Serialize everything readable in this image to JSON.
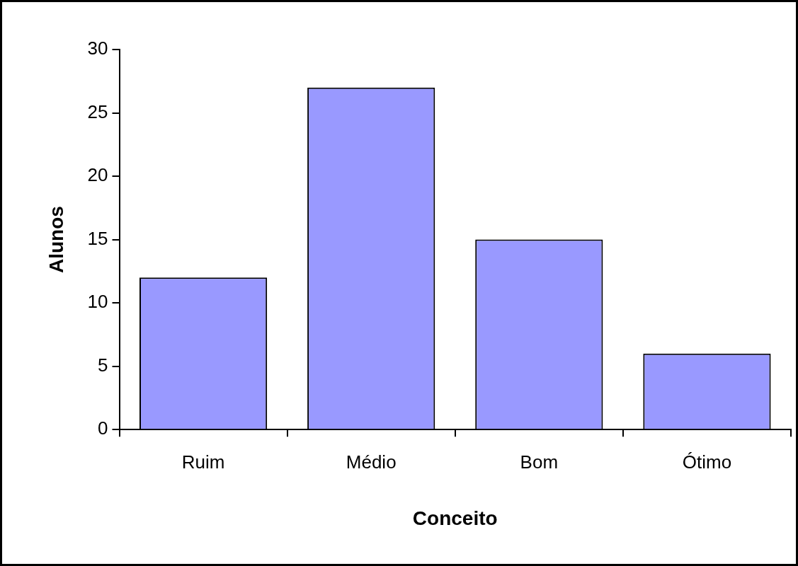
{
  "chart_data": {
    "type": "bar",
    "xlabel": "Conceito",
    "ylabel": "Alunos",
    "categories": [
      "Ruim",
      "Médio",
      "Bom",
      "Ótimo"
    ],
    "values": [
      12,
      27,
      15,
      6
    ],
    "color": "#9999ff",
    "ylim": [
      0,
      30
    ],
    "yticks": [
      0,
      5,
      10,
      15,
      20,
      25,
      30
    ],
    "grid": false,
    "legend": false
  }
}
